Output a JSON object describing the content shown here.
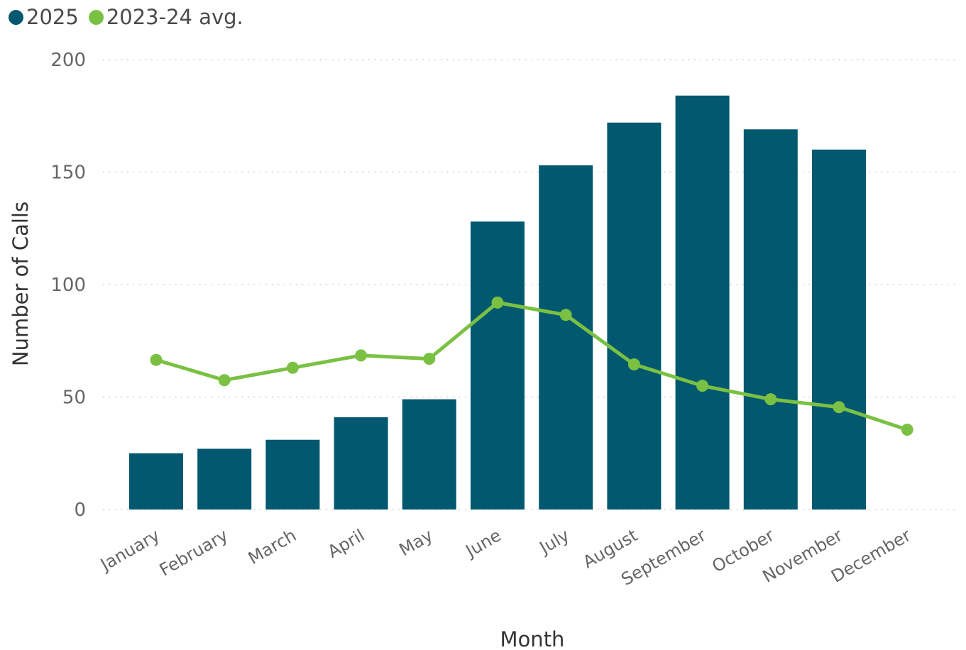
{
  "legend": {
    "items": [
      {
        "label": "2025",
        "color": "#02586e"
      },
      {
        "label": "2023-24 avg.",
        "color": "#7ac143"
      }
    ]
  },
  "chart_data": {
    "type": "bar",
    "title": "",
    "xlabel": "Month",
    "ylabel": "Number of Calls",
    "ylim": [
      0,
      200
    ],
    "yticks": [
      0,
      50,
      100,
      150,
      200
    ],
    "grid": true,
    "legend_position": "top-left",
    "categories": [
      "January",
      "February",
      "March",
      "April",
      "May",
      "June",
      "July",
      "August",
      "September",
      "October",
      "November",
      "December"
    ],
    "series": [
      {
        "name": "2025",
        "type": "bar",
        "color": "#02586e",
        "values": [
          25,
          27,
          31,
          41,
          49,
          128,
          153,
          172,
          184,
          169,
          160,
          null
        ]
      },
      {
        "name": "2023-24 avg.",
        "type": "line",
        "color": "#7ac143",
        "values": [
          66.5,
          57.5,
          63,
          68.5,
          67,
          92,
          86.5,
          64.5,
          55,
          49,
          45.5,
          35.5
        ]
      }
    ]
  }
}
